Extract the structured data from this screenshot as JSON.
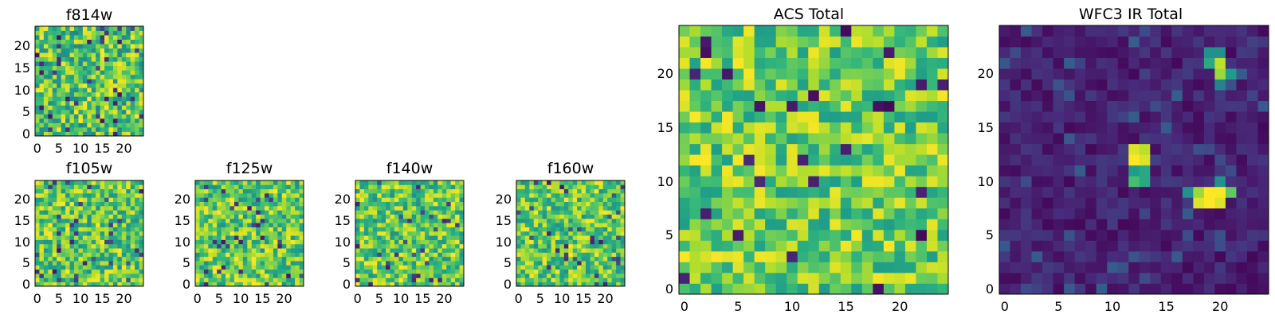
{
  "chart_data": [
    {
      "type": "heatmap",
      "title": "f814w",
      "x_ticks": [
        "0",
        "5",
        "10",
        "15",
        "20"
      ],
      "y_ticks": [
        "0",
        "5",
        "10",
        "15",
        "20"
      ],
      "xlim": [
        -0.5,
        24.5
      ],
      "ylim": [
        -0.5,
        24.5
      ],
      "grid": false,
      "colormap": "viridis",
      "seed": 11,
      "texture": "fine_noise"
    },
    {
      "type": "heatmap",
      "title": "f105w",
      "x_ticks": [
        "0",
        "5",
        "10",
        "15",
        "20"
      ],
      "y_ticks": [
        "0",
        "5",
        "10",
        "15",
        "20"
      ],
      "xlim": [
        -0.5,
        24.5
      ],
      "ylim": [
        -0.5,
        24.5
      ],
      "grid": false,
      "colormap": "viridis",
      "seed": 23,
      "texture": "smooth_noise"
    },
    {
      "type": "heatmap",
      "title": "f125w",
      "x_ticks": [
        "0",
        "5",
        "10",
        "15",
        "20"
      ],
      "y_ticks": [
        "0",
        "5",
        "10",
        "15",
        "20"
      ],
      "xlim": [
        -0.5,
        24.5
      ],
      "ylim": [
        -0.5,
        24.5
      ],
      "grid": false,
      "colormap": "viridis",
      "seed": 37,
      "texture": "smooth_noise"
    },
    {
      "type": "heatmap",
      "title": "f140w",
      "x_ticks": [
        "0",
        "5",
        "10",
        "15",
        "20"
      ],
      "y_ticks": [
        "0",
        "5",
        "10",
        "15",
        "20"
      ],
      "xlim": [
        -0.5,
        24.5
      ],
      "ylim": [
        -0.5,
        24.5
      ],
      "grid": false,
      "colormap": "viridis",
      "seed": 41,
      "texture": "smooth_noise"
    },
    {
      "type": "heatmap",
      "title": "f160w",
      "x_ticks": [
        "0",
        "5",
        "10",
        "15",
        "20"
      ],
      "y_ticks": [
        "0",
        "5",
        "10",
        "15",
        "20"
      ],
      "xlim": [
        -0.5,
        24.5
      ],
      "ylim": [
        -0.5,
        24.5
      ],
      "grid": false,
      "colormap": "viridis",
      "seed": 53,
      "texture": "smooth_noise"
    },
    {
      "type": "heatmap",
      "title": "ACS Total",
      "x_ticks": [
        "0",
        "5",
        "10",
        "15",
        "20"
      ],
      "y_ticks": [
        "0",
        "5",
        "10",
        "15",
        "20"
      ],
      "xlim": [
        -0.5,
        24.5
      ],
      "ylim": [
        -0.5,
        24.5
      ],
      "grid": false,
      "colormap": "viridis",
      "seed": 67,
      "texture": "noise"
    },
    {
      "type": "heatmap",
      "title": "WFC3 IR Total",
      "x_ticks": [
        "0",
        "5",
        "10",
        "15",
        "20"
      ],
      "y_ticks": [
        "0",
        "5",
        "10",
        "15",
        "20"
      ],
      "xlim": [
        -0.5,
        24.5
      ],
      "ylim": [
        -0.5,
        24.5
      ],
      "grid": false,
      "colormap": "viridis",
      "seed": 79,
      "texture": "dark_with_sources",
      "sources": [
        {
          "x": 12,
          "y": 13,
          "value": 0.95
        },
        {
          "x": 13,
          "y": 13,
          "value": 0.9
        },
        {
          "x": 12,
          "y": 12,
          "value": 1.0
        },
        {
          "x": 13,
          "y": 12,
          "value": 0.95
        },
        {
          "x": 12,
          "y": 11,
          "value": 0.55
        },
        {
          "x": 13,
          "y": 11,
          "value": 0.6
        },
        {
          "x": 12,
          "y": 10,
          "value": 0.7
        },
        {
          "x": 13,
          "y": 10,
          "value": 0.6
        },
        {
          "x": 18,
          "y": 9,
          "value": 0.85
        },
        {
          "x": 19,
          "y": 9,
          "value": 1.0
        },
        {
          "x": 20,
          "y": 9,
          "value": 1.0
        },
        {
          "x": 21,
          "y": 9,
          "value": 0.75
        },
        {
          "x": 18,
          "y": 8,
          "value": 0.95
        },
        {
          "x": 19,
          "y": 8,
          "value": 1.0
        },
        {
          "x": 20,
          "y": 8,
          "value": 0.95
        },
        {
          "x": 17,
          "y": 9,
          "value": 0.5
        },
        {
          "x": 20,
          "y": 10,
          "value": 0.5
        },
        {
          "x": 20,
          "y": 21,
          "value": 0.9
        },
        {
          "x": 20,
          "y": 20,
          "value": 0.85
        },
        {
          "x": 19,
          "y": 21,
          "value": 0.6
        },
        {
          "x": 19,
          "y": 22,
          "value": 0.5
        },
        {
          "x": 20,
          "y": 22,
          "value": 0.5
        },
        {
          "x": 20,
          "y": 19,
          "value": 0.45
        },
        {
          "x": 21,
          "y": 20,
          "value": 0.55
        }
      ]
    }
  ]
}
